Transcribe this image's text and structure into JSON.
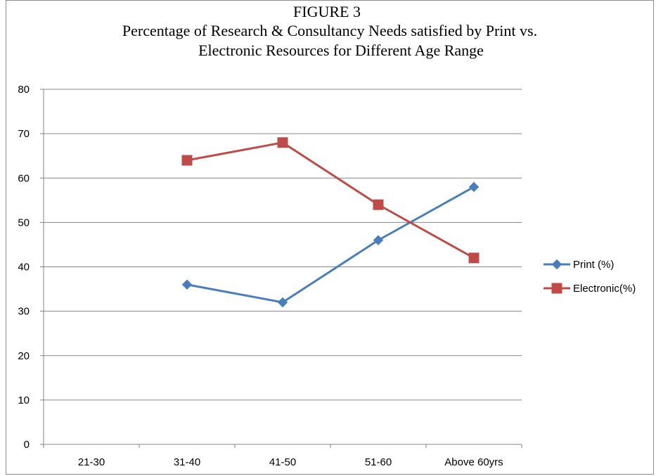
{
  "chart_data": {
    "type": "line",
    "title_lines": [
      "FIGURE 3",
      "Percentage of Research & Consultancy Needs satisfied by Print vs.",
      "Electronic Resources for Different Age Range"
    ],
    "categories": [
      "21-30",
      "31-40",
      "41-50",
      "51-60",
      "Above 60yrs"
    ],
    "series": [
      {
        "name": "Print (%)",
        "color": "#4a7ebb",
        "marker": "diamond",
        "values": [
          null,
          36,
          32,
          46,
          58
        ]
      },
      {
        "name": "Electronic(%)",
        "color": "#be4b48",
        "marker": "square",
        "values": [
          null,
          64,
          68,
          54,
          42
        ]
      }
    ],
    "ylim": [
      0,
      80
    ],
    "yticks": [
      0,
      10,
      20,
      30,
      40,
      50,
      60,
      70,
      80
    ],
    "grid": true,
    "legend_position": "right",
    "xlabel": "",
    "ylabel": ""
  }
}
